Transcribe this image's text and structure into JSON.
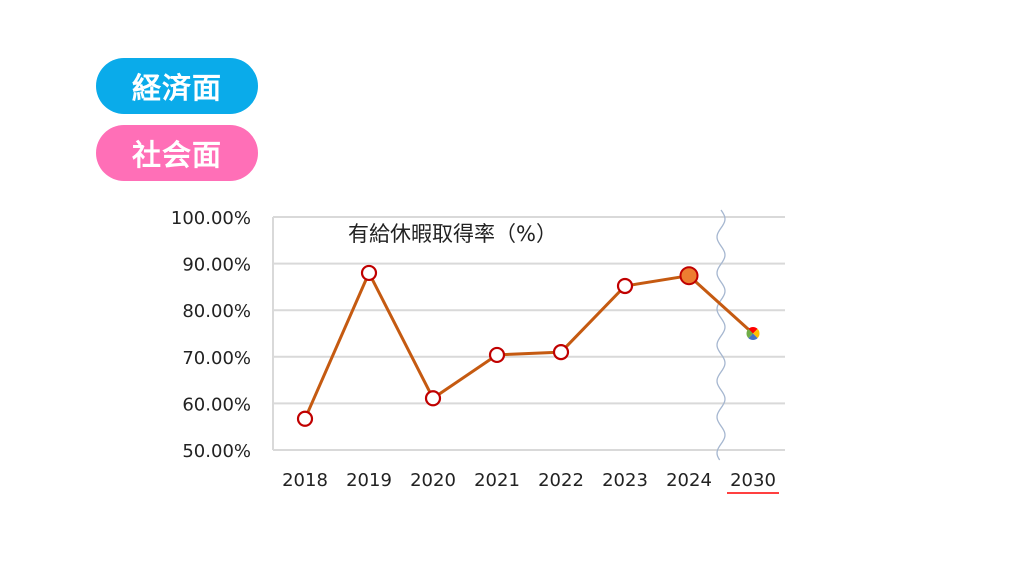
{
  "tags": [
    {
      "label": "経済面",
      "color": "#0aabea"
    },
    {
      "label": "社会面",
      "color": "#ff6fb7"
    }
  ],
  "chart_data": {
    "type": "line",
    "title": "有給休暇取得率（%）",
    "categories": [
      "2018",
      "2019",
      "2020",
      "2021",
      "2022",
      "2023",
      "2024",
      "2030"
    ],
    "values": [
      56.7,
      88.0,
      61.1,
      70.4,
      71.0,
      85.2,
      87.4,
      75.0
    ],
    "ylim": [
      50,
      100
    ],
    "yticks": [
      "100.00%",
      "90.00%",
      "80.00%",
      "70.00%",
      "60.00%",
      "50.00%"
    ],
    "ytick_values": [
      100,
      90,
      80,
      70,
      60,
      50
    ],
    "grid": true,
    "axis_break_before": "2030",
    "highlight": {
      "2024": "current",
      "2030": "target"
    },
    "colors": {
      "line": "#c55a11",
      "marker_edge": "#c00000",
      "marker_fill": "#ffffff",
      "current_fill": "#ed7d31",
      "target_underline": "#ff0000",
      "grid": "#d9d9d9",
      "break_line": "#a6b7d0",
      "target_colors": [
        "#ff0000",
        "#ffc000",
        "#4472c4",
        "#70ad47"
      ]
    }
  }
}
